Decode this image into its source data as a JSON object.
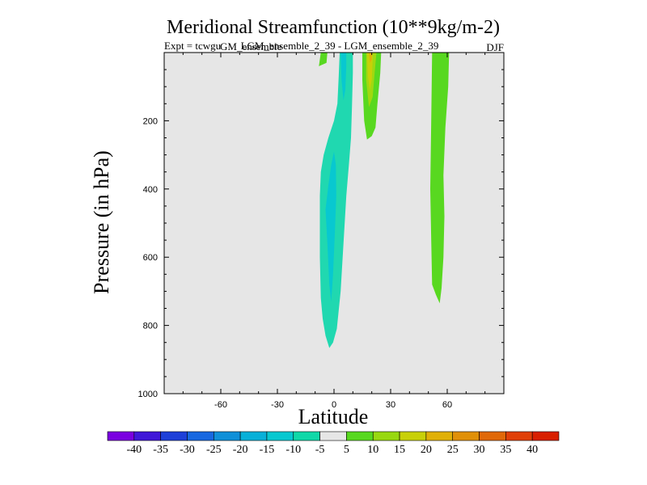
{
  "chart_data": {
    "type": "heatmap",
    "title": "Meridional Streamfunction (10**9kg/m-2)",
    "subtitle_left": "Expt = tcwgu",
    "subtitle_left_overlap": "GM_ensemble",
    "subtitle_center": "LGM_ensemble_2_39 - LGM_ensemble_2_39",
    "subtitle_right": "DJF",
    "xlabel": "Latitude",
    "ylabel": "Pressure (in hPa)",
    "xlim": [
      -90,
      90
    ],
    "ylim": [
      0,
      1000
    ],
    "x_ticks": [
      -60,
      -30,
      0,
      30,
      60
    ],
    "x_tick_labels": [
      "-60",
      "-30",
      "0",
      "30",
      "60"
    ],
    "y_ticks": [
      200,
      400,
      600,
      800,
      1000
    ],
    "y_tick_labels": [
      "200",
      "400",
      "600",
      "800",
      "1000"
    ],
    "background_color": "#e6e6e6",
    "colorbar": {
      "labels": [
        "-40",
        "-35",
        "-30",
        "-25",
        "-20",
        "-15",
        "-10",
        "-5",
        "5",
        "10",
        "15",
        "20",
        "25",
        "30",
        "35",
        "40"
      ],
      "colors": [
        "#7a00e0",
        "#4018d8",
        "#1e40d8",
        "#1868e0",
        "#1090d8",
        "#08b0d8",
        "#08c8d0",
        "#10d8a8",
        "#e6e6e6",
        "#58d820",
        "#98d810",
        "#c8d008",
        "#e0b008",
        "#e09008",
        "#e06808",
        "#e04008",
        "#d82000"
      ]
    },
    "contours": [
      {
        "name": "neg-outer",
        "level_range": [
          -10,
          -5
        ],
        "color": "#20d8b0",
        "points": [
          [
            -7,
            720
          ],
          [
            -6,
            780
          ],
          [
            -4.5,
            830
          ],
          [
            -2.5,
            866
          ],
          [
            -0.5,
            850
          ],
          [
            1.5,
            810
          ],
          [
            3.5,
            700
          ],
          [
            5,
            560
          ],
          [
            6.5,
            420
          ],
          [
            8,
            320
          ],
          [
            9,
            250
          ],
          [
            9.5,
            160
          ],
          [
            10,
            60
          ],
          [
            10,
            0
          ],
          [
            3,
            0
          ],
          [
            2.5,
            70
          ],
          [
            1.8,
            150
          ],
          [
            0,
            200
          ],
          [
            -3,
            250
          ],
          [
            -5.5,
            300
          ],
          [
            -7,
            350
          ],
          [
            -7.5,
            420
          ],
          [
            -7.5,
            500
          ],
          [
            -7.5,
            600
          ]
        ]
      },
      {
        "name": "neg-core-upper",
        "level_range": [
          -15,
          -10
        ],
        "color": "#08c8d0",
        "points": [
          [
            3.5,
            0
          ],
          [
            4,
            80
          ],
          [
            5,
            140
          ],
          [
            6,
            110
          ],
          [
            6.5,
            40
          ],
          [
            6.5,
            0
          ]
        ]
      },
      {
        "name": "neg-core-mid",
        "level_range": [
          -15,
          -10
        ],
        "color": "#08c8d0",
        "points": [
          [
            -4.5,
            460
          ],
          [
            -3.5,
            560
          ],
          [
            -2.5,
            680
          ],
          [
            -1.5,
            730
          ],
          [
            -0.5,
            650
          ],
          [
            0.5,
            520
          ],
          [
            1.2,
            420
          ],
          [
            1,
            330
          ],
          [
            0,
            290
          ],
          [
            -1.5,
            330
          ],
          [
            -3,
            390
          ]
        ]
      },
      {
        "name": "pos-sh",
        "level_range": [
          5,
          10
        ],
        "color": "#58d820",
        "points": [
          [
            -8,
            40
          ],
          [
            -4,
            30
          ],
          [
            -3.5,
            0
          ],
          [
            -7,
            0
          ],
          [
            -7.5,
            20
          ]
        ]
      },
      {
        "name": "pos-nh-outer",
        "level_range": [
          5,
          10
        ],
        "color": "#58d820",
        "points": [
          [
            15,
            0
          ],
          [
            15,
            80
          ],
          [
            16,
            200
          ],
          [
            17.5,
            255
          ],
          [
            20,
            245
          ],
          [
            22,
            220
          ],
          [
            23,
            150
          ],
          [
            24.5,
            60
          ],
          [
            25,
            0
          ]
        ]
      },
      {
        "name": "pos-nh-inner",
        "level_range": [
          10,
          15
        ],
        "color": "#a0d810",
        "points": [
          [
            17,
            0
          ],
          [
            17,
            80
          ],
          [
            18.5,
            160
          ],
          [
            20.5,
            130
          ],
          [
            21.5,
            60
          ],
          [
            22.5,
            0
          ]
        ]
      },
      {
        "name": "pos-nh-core",
        "level_range": [
          15,
          20
        ],
        "color": "#c8d008",
        "points": [
          [
            17.5,
            0
          ],
          [
            18,
            70
          ],
          [
            19,
            110
          ],
          [
            20,
            80
          ],
          [
            20.5,
            20
          ],
          [
            20.5,
            0
          ]
        ]
      },
      {
        "name": "pos-nh-peak",
        "level_range": [
          20,
          25
        ],
        "color": "#e0b008",
        "points": [
          [
            18.5,
            0
          ],
          [
            19,
            30
          ],
          [
            20,
            20
          ],
          [
            20,
            0
          ]
        ]
      },
      {
        "name": "pos-60n",
        "level_range": [
          5,
          10
        ],
        "color": "#58d820",
        "points": [
          [
            52,
            0
          ],
          [
            51.5,
            200
          ],
          [
            51,
            400
          ],
          [
            51.5,
            550
          ],
          [
            52,
            680
          ],
          [
            54,
            710
          ],
          [
            56,
            735
          ],
          [
            57,
            690
          ],
          [
            58,
            600
          ],
          [
            58.5,
            480
          ],
          [
            58,
            360
          ],
          [
            59,
            220
          ],
          [
            60.5,
            100
          ],
          [
            61,
            0
          ]
        ]
      }
    ]
  }
}
